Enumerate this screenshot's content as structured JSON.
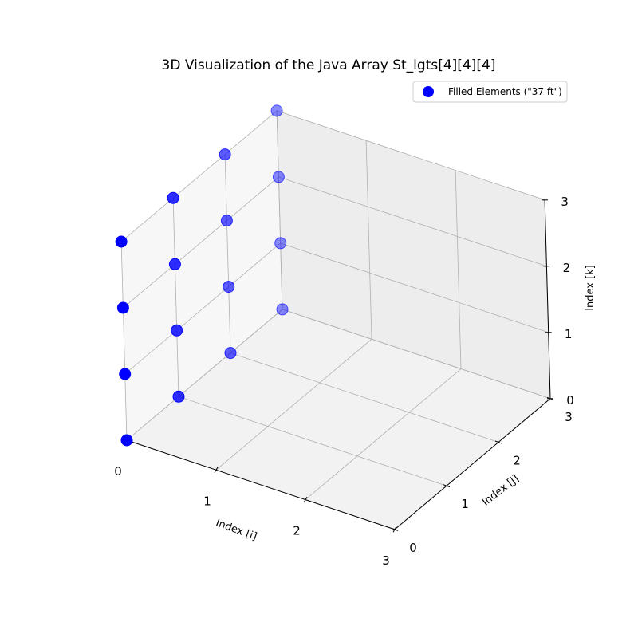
{
  "chart_data": {
    "type": "scatter",
    "projection": "3d",
    "title": "3D Visualization of the Java Array St_lgts[4][4][4]",
    "xlabel": "Index [i]",
    "ylabel": "Index [j]",
    "zlabel": "Index [k]",
    "xlim": [
      0,
      3
    ],
    "ylim": [
      0,
      3
    ],
    "zlim": [
      0,
      3
    ],
    "x_ticks": [
      "0",
      "1",
      "2",
      "3"
    ],
    "y_ticks": [
      "0",
      "1",
      "2",
      "3"
    ],
    "z_ticks": [
      "0",
      "1",
      "2",
      "3"
    ],
    "grid": true,
    "legend_position": "top-right",
    "series": [
      {
        "name": "Filled Elements (\"37 ft\")",
        "color": "#0000ff",
        "points": [
          {
            "x": 0,
            "y": 0,
            "z": 0
          },
          {
            "x": 0,
            "y": 0,
            "z": 1
          },
          {
            "x": 0,
            "y": 0,
            "z": 2
          },
          {
            "x": 0,
            "y": 0,
            "z": 3
          },
          {
            "x": 0,
            "y": 1,
            "z": 0
          },
          {
            "x": 0,
            "y": 1,
            "z": 1
          },
          {
            "x": 0,
            "y": 1,
            "z": 2
          },
          {
            "x": 0,
            "y": 1,
            "z": 3
          },
          {
            "x": 0,
            "y": 2,
            "z": 0
          },
          {
            "x": 0,
            "y": 2,
            "z": 1
          },
          {
            "x": 0,
            "y": 2,
            "z": 2
          },
          {
            "x": 0,
            "y": 2,
            "z": 3
          },
          {
            "x": 0,
            "y": 3,
            "z": 0
          },
          {
            "x": 0,
            "y": 3,
            "z": 1
          },
          {
            "x": 0,
            "y": 3,
            "z": 2
          },
          {
            "x": 0,
            "y": 3,
            "z": 3
          }
        ]
      }
    ]
  }
}
